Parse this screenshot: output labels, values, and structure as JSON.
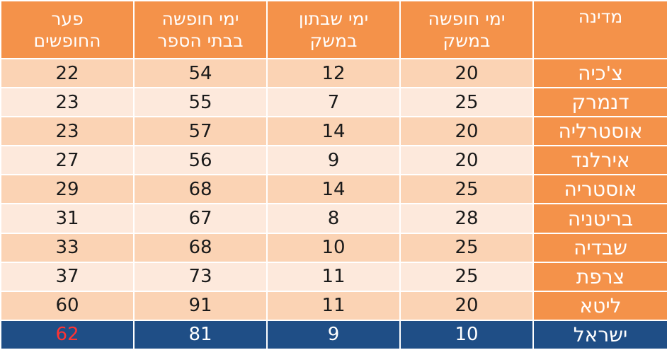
{
  "header": {
    "country": "מדינה",
    "vacation_economy": [
      "ימי חופשה",
      "במשק"
    ],
    "strike_days": [
      "ימי שבתון",
      "במשק"
    ],
    "school_vacation": [
      "ימי חופשה",
      "בבתי הספר"
    ],
    "gap": [
      "פער",
      "החופשים"
    ]
  },
  "rows": [
    {
      "country": "צ'כיה",
      "vacation_economy": "20",
      "strike_days": "12",
      "school_vacation": "54",
      "gap": "22"
    },
    {
      "country": "דנמרק",
      "vacation_economy": "25",
      "strike_days": "7",
      "school_vacation": "55",
      "gap": "23"
    },
    {
      "country": "אוסטרליה",
      "vacation_economy": "20",
      "strike_days": "14",
      "school_vacation": "57",
      "gap": "23"
    },
    {
      "country": "אירלנד",
      "vacation_economy": "20",
      "strike_days": "9",
      "school_vacation": "56",
      "gap": "27"
    },
    {
      "country": "אוסטריה",
      "vacation_economy": "25",
      "strike_days": "14",
      "school_vacation": "68",
      "gap": "29"
    },
    {
      "country": "בריטניה",
      "vacation_economy": "28",
      "strike_days": "8",
      "school_vacation": "67",
      "gap": "31"
    },
    {
      "country": "שבדיה",
      "vacation_economy": "25",
      "strike_days": "10",
      "school_vacation": "68",
      "gap": "33"
    },
    {
      "country": "צרפת",
      "vacation_economy": "25",
      "strike_days": "11",
      "school_vacation": "73",
      "gap": "37"
    },
    {
      "country": "ליטא",
      "vacation_economy": "20",
      "strike_days": "11",
      "school_vacation": "91",
      "gap": "60"
    },
    {
      "country": "ישראל",
      "vacation_economy": "10",
      "strike_days": "9",
      "school_vacation": "81",
      "gap": "62"
    }
  ],
  "colors": {
    "header_orange": "#f4924a",
    "row_light": "#fde9dc",
    "row_dark": "#fbd3b4",
    "israel_row": "#1f4e86",
    "israel_gap_text": "#ff3333"
  }
}
